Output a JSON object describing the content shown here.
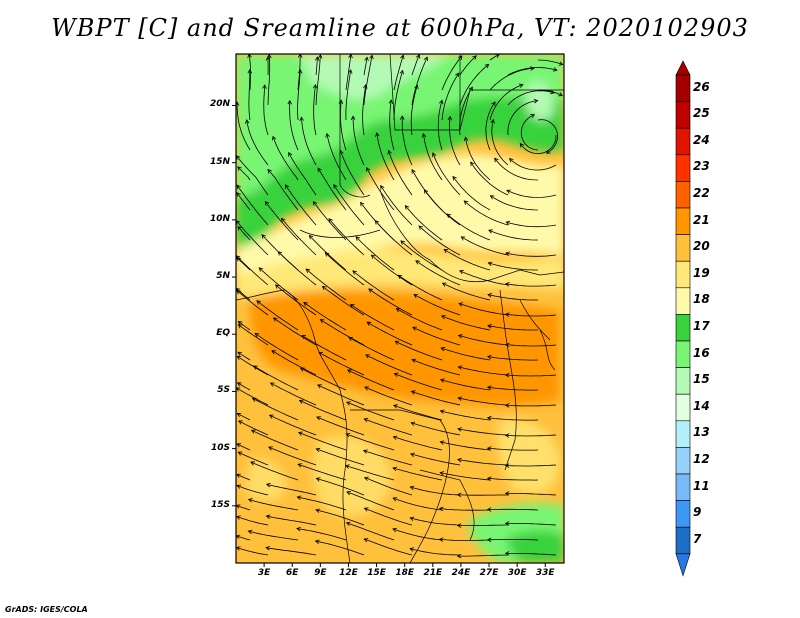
{
  "title": "WBPT [C] and Sreamline at 600hPa, VT: 2020102903",
  "credit": "GrADS: IGES/COLA",
  "map": {
    "lon_range": [
      0,
      35
    ],
    "lat_range": [
      -20,
      24.5
    ],
    "lat_ticks": [
      {
        "value": 20,
        "label": "20N"
      },
      {
        "value": 15,
        "label": "15N"
      },
      {
        "value": 10,
        "label": "10N"
      },
      {
        "value": 5,
        "label": "5N"
      },
      {
        "value": 0,
        "label": "EQ"
      },
      {
        "value": -5,
        "label": "5S"
      },
      {
        "value": -10,
        "label": "10S"
      },
      {
        "value": -15,
        "label": "15S"
      }
    ],
    "lon_ticks": [
      {
        "value": 3,
        "label": "3E"
      },
      {
        "value": 6,
        "label": "6E"
      },
      {
        "value": 9,
        "label": "9E"
      },
      {
        "value": 12,
        "label": "12E"
      },
      {
        "value": 15,
        "label": "15E"
      },
      {
        "value": 18,
        "label": "18E"
      },
      {
        "value": 21,
        "label": "21E"
      },
      {
        "value": 24,
        "label": "24E"
      },
      {
        "value": 27,
        "label": "27E"
      },
      {
        "value": 30,
        "label": "30E"
      },
      {
        "value": 33,
        "label": "33E"
      }
    ]
  },
  "colorbar": {
    "levels": [
      {
        "label": "26",
        "color": "#a50000"
      },
      {
        "label": "25",
        "color": "#c00000"
      },
      {
        "label": "24",
        "color": "#e11400"
      },
      {
        "label": "23",
        "color": "#ff3200"
      },
      {
        "label": "22",
        "color": "#ff6000"
      },
      {
        "label": "21",
        "color": "#ff9600"
      },
      {
        "label": "20",
        "color": "#ffc03c"
      },
      {
        "label": "19",
        "color": "#ffe878"
      },
      {
        "label": "18",
        "color": "#fffaaa"
      },
      {
        "label": "17",
        "color": "#37d23c"
      },
      {
        "label": "16",
        "color": "#78f573"
      },
      {
        "label": "15",
        "color": "#b4fab4"
      },
      {
        "label": "14",
        "color": "#e1ffe1"
      },
      {
        "label": "13",
        "color": "#b4f0fa"
      },
      {
        "label": "12",
        "color": "#96d2fa"
      },
      {
        "label": "11",
        "color": "#78b9fa"
      },
      {
        "label": "9",
        "color": "#3c97f5"
      },
      {
        "label": "7",
        "color": "#1e6ec8"
      }
    ],
    "bottom_color": "#2878e6"
  }
}
